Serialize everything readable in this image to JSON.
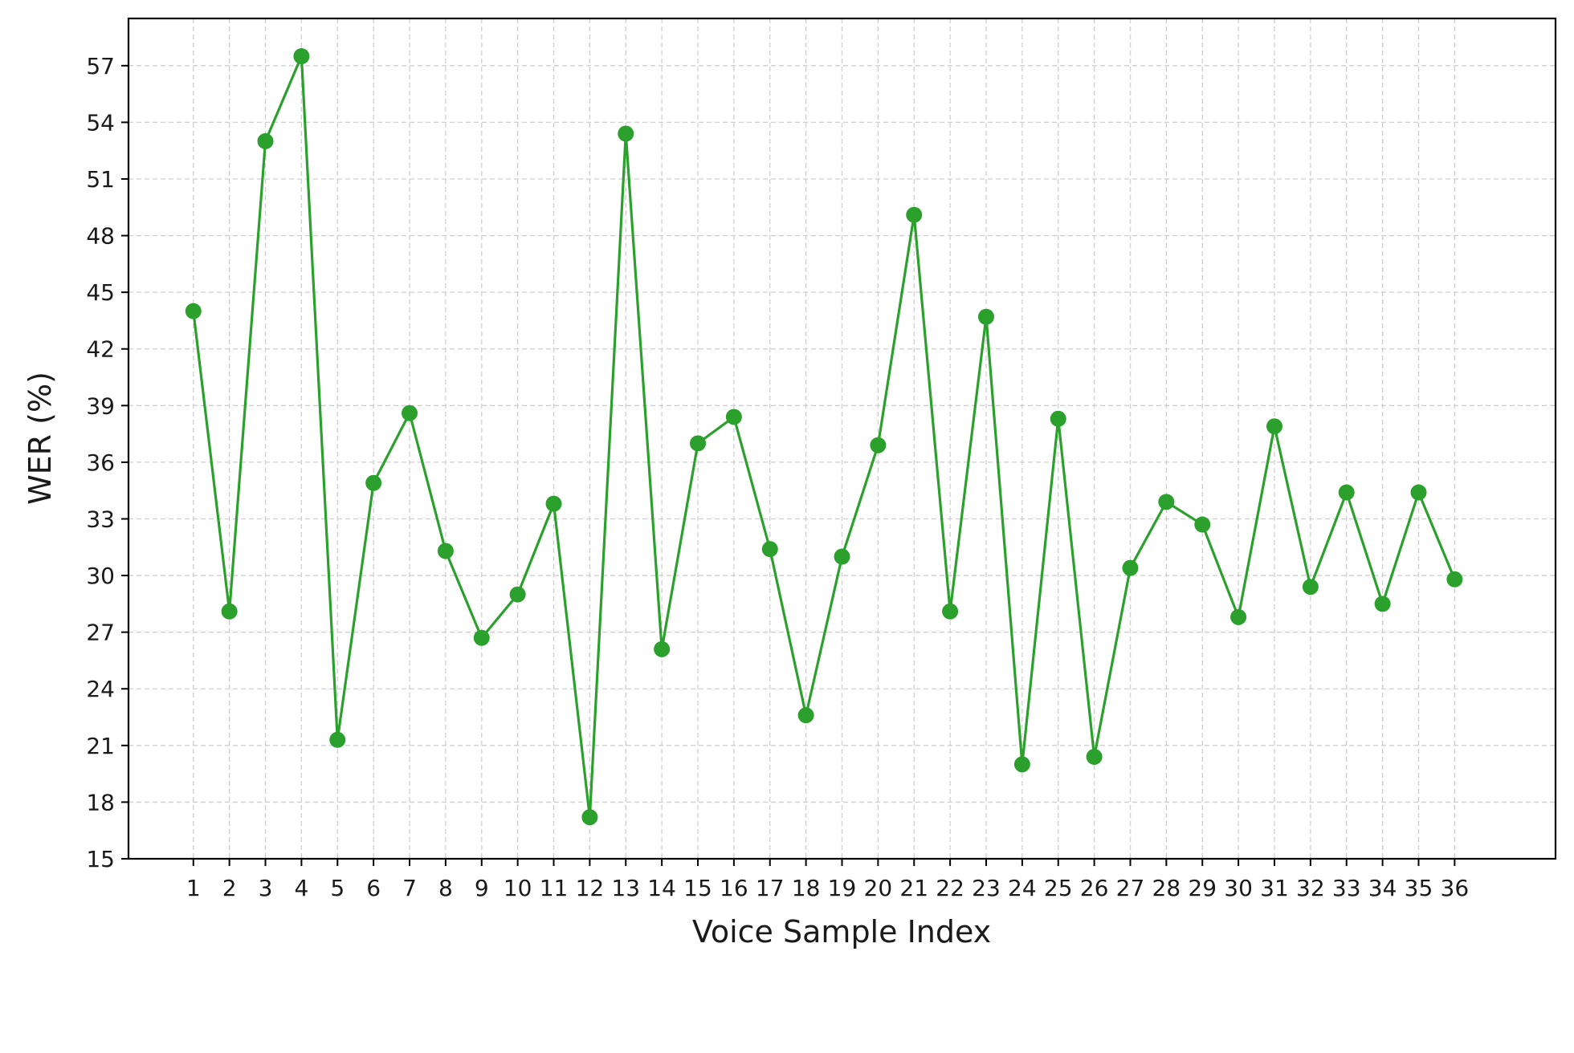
{
  "chart_data": {
    "type": "line",
    "title": "",
    "xlabel": "Voice Sample Index",
    "ylabel": "WER (%)",
    "x": [
      1,
      2,
      3,
      4,
      5,
      6,
      7,
      8,
      9,
      10,
      11,
      12,
      13,
      14,
      15,
      16,
      17,
      18,
      19,
      20,
      21,
      22,
      23,
      24,
      25,
      26,
      27,
      28,
      29,
      30,
      31,
      32,
      33,
      34,
      35,
      36
    ],
    "xlim": [
      -0.8,
      38.8
    ],
    "ylim": [
      15,
      59.5
    ],
    "yticks": [
      15,
      18,
      21,
      24,
      27,
      30,
      33,
      36,
      39,
      42,
      45,
      48,
      51,
      54,
      57
    ],
    "grid": true,
    "legend": "none",
    "series": [
      {
        "color": "#2ca02c",
        "marker": "circle",
        "values": [
          44.0,
          28.1,
          53.0,
          57.5,
          21.3,
          34.9,
          38.6,
          31.3,
          26.7,
          29.0,
          33.8,
          17.2,
          53.4,
          26.1,
          37.0,
          38.4,
          31.4,
          22.6,
          31.0,
          36.9,
          49.1,
          28.1,
          43.7,
          20.0,
          38.3,
          20.4,
          30.4,
          33.9,
          32.7,
          27.8,
          37.9,
          29.4,
          34.4,
          28.5,
          34.4,
          29.8
        ]
      }
    ]
  }
}
